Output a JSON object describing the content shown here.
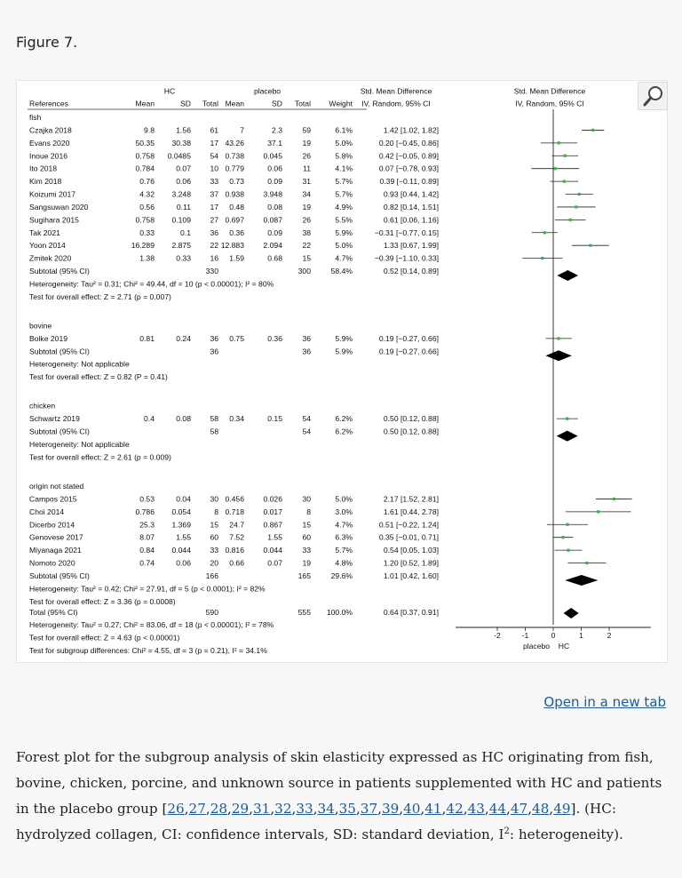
{
  "figure": {
    "title": "Figure 7.",
    "open_link": "Open in a new tab",
    "zoom_icon": "magnifier-icon"
  },
  "caption": {
    "text_before": "Forest plot for the subgroup analysis of skin elasticity expressed as HC originating from fish, bovine, chicken, porcine, and unknown source in patients supplemented with HC and patients in the placebo group [",
    "refs": [
      "26",
      "27",
      "28",
      "29",
      "31",
      "32",
      "33",
      "34",
      "35",
      "37",
      "39",
      "40",
      "41",
      "42",
      "43",
      "44",
      "47",
      "48",
      "49"
    ],
    "text_after_1": "]. (HC: hydrolyzed collagen, CI: confidence intervals, SD: standard deviation, I",
    "sup": "2",
    "text_after_2": ": heterogeneity)."
  },
  "chart_data": {
    "type": "table",
    "header": {
      "group_hc": "HC",
      "group_placebo": "placebo",
      "smd_title": "Std. Mean Difference",
      "smd_sub": "IV, Random, 95% CI",
      "plot_title": "Std. Mean Difference",
      "plot_sub": "IV, Random, 95% CI",
      "columns": [
        "References",
        "Mean",
        "SD",
        "Total",
        "Mean",
        "SD",
        "Total",
        "Weight"
      ]
    },
    "axis": {
      "ticks": [
        "-2",
        "-1",
        "0",
        "1",
        "2"
      ],
      "tick_values": [
        -2,
        -1,
        0,
        1,
        2
      ],
      "range": [
        -3.4,
        3.4
      ],
      "left_label": "placebo",
      "right_label": "HC"
    },
    "groups": [
      {
        "name": "fish",
        "studies": [
          {
            "ref": "Czajka 2018",
            "hc_mean": "9.8",
            "hc_sd": "1.56",
            "hc_n": "61",
            "pl_mean": "7",
            "pl_sd": "2.3",
            "pl_n": "59",
            "weight": "6.1%",
            "ci": "1.42 [1.02, 1.82]",
            "est": 1.42,
            "lo": 1.02,
            "hi": 1.82
          },
          {
            "ref": "Evans 2020",
            "hc_mean": "50.35",
            "hc_sd": "30.38",
            "hc_n": "17",
            "pl_mean": "43.26",
            "pl_sd": "37.1",
            "pl_n": "19",
            "weight": "5.0%",
            "ci": "0.20 [−0.45, 0.86]",
            "est": 0.2,
            "lo": -0.45,
            "hi": 0.86
          },
          {
            "ref": "Inoue 2016",
            "hc_mean": "0.758",
            "hc_sd": "0.0485",
            "hc_n": "54",
            "pl_mean": "0.738",
            "pl_sd": "0.045",
            "pl_n": "26",
            "weight": "5.8%",
            "ci": "0.42 [−0.05, 0.89]",
            "est": 0.42,
            "lo": -0.05,
            "hi": 0.89
          },
          {
            "ref": "Ito 2018",
            "hc_mean": "0.784",
            "hc_sd": "0.07",
            "hc_n": "10",
            "pl_mean": "0.779",
            "pl_sd": "0.06",
            "pl_n": "11",
            "weight": "4.1%",
            "ci": "0.07 [−0.78, 0.93]",
            "est": 0.07,
            "lo": -0.78,
            "hi": 0.93
          },
          {
            "ref": "Kim 2018",
            "hc_mean": "0.76",
            "hc_sd": "0.06",
            "hc_n": "33",
            "pl_mean": "0.73",
            "pl_sd": "0.09",
            "pl_n": "31",
            "weight": "5.7%",
            "ci": "0.39 [−0.11, 0.89]",
            "est": 0.39,
            "lo": -0.11,
            "hi": 0.89
          },
          {
            "ref": "Koizumi 2017",
            "hc_mean": "4.32",
            "hc_sd": "3.248",
            "hc_n": "37",
            "pl_mean": "0.938",
            "pl_sd": "3.948",
            "pl_n": "34",
            "weight": "5.7%",
            "ci": "0.93 [0.44, 1.42]",
            "est": 0.93,
            "lo": 0.44,
            "hi": 1.42
          },
          {
            "ref": "Sangsuwan 2020",
            "hc_mean": "0.56",
            "hc_sd": "0.11",
            "hc_n": "17",
            "pl_mean": "0.48",
            "pl_sd": "0.08",
            "pl_n": "19",
            "weight": "4.9%",
            "ci": "0.82 [0.14, 1.51]",
            "est": 0.82,
            "lo": 0.14,
            "hi": 1.51
          },
          {
            "ref": "Sugihara 2015",
            "hc_mean": "0.758",
            "hc_sd": "0.109",
            "hc_n": "27",
            "pl_mean": "0.697",
            "pl_sd": "0.087",
            "pl_n": "26",
            "weight": "5.5%",
            "ci": "0.61 [0.06, 1.16]",
            "est": 0.61,
            "lo": 0.06,
            "hi": 1.16
          },
          {
            "ref": "Tak 2021",
            "hc_mean": "0.33",
            "hc_sd": "0.1",
            "hc_n": "36",
            "pl_mean": "0.36",
            "pl_sd": "0.09",
            "pl_n": "38",
            "weight": "5.9%",
            "ci": "−0.31 [−0.77, 0.15]",
            "est": -0.31,
            "lo": -0.77,
            "hi": 0.15
          },
          {
            "ref": "Yoon 2014",
            "hc_mean": "16.289",
            "hc_sd": "2.875",
            "hc_n": "22",
            "pl_mean": "12.883",
            "pl_sd": "2.094",
            "pl_n": "22",
            "weight": "5.0%",
            "ci": "1.33 [0.67, 1.99]",
            "est": 1.33,
            "lo": 0.67,
            "hi": 1.99
          },
          {
            "ref": "Zmitek 2020",
            "hc_mean": "1.38",
            "hc_sd": "0.33",
            "hc_n": "16",
            "pl_mean": "1.59",
            "pl_sd": "0.68",
            "pl_n": "15",
            "weight": "4.7%",
            "ci": "−0.39 [−1.10, 0.33]",
            "est": -0.39,
            "lo": -1.1,
            "hi": 0.33
          }
        ],
        "subtotal": {
          "label": "Subtotal (95% CI)",
          "hc_n": "330",
          "pl_n": "300",
          "weight": "58.4%",
          "ci": "0.52 [0.14, 0.89]",
          "est": 0.52,
          "lo": 0.14,
          "hi": 0.89
        },
        "heterogeneity": "Heterogeneity: Tau² = 0.31; Chi² = 49.44, df = 10 (p < 0.00001); I² = 80%",
        "overall": "Test for overall effect: Z = 2.71 (p = 0.007)"
      },
      {
        "name": "bovine",
        "studies": [
          {
            "ref": "Bolke 2019",
            "hc_mean": "0.81",
            "hc_sd": "0.24",
            "hc_n": "36",
            "pl_mean": "0.75",
            "pl_sd": "0.36",
            "pl_n": "36",
            "weight": "5.9%",
            "ci": "0.19 [−0.27, 0.66]",
            "est": 0.19,
            "lo": -0.27,
            "hi": 0.66
          }
        ],
        "subtotal": {
          "label": "Subtotal (95% CI)",
          "hc_n": "36",
          "pl_n": "36",
          "weight": "5.9%",
          "ci": "0.19 [−0.27, 0.66]",
          "est": 0.19,
          "lo": -0.27,
          "hi": 0.66
        },
        "heterogeneity": "Heterogeneity: Not applicable",
        "overall": "Test for overall effect: Z = 0.82 (P = 0.41)"
      },
      {
        "name": "chicken",
        "studies": [
          {
            "ref": "Schwartz 2019",
            "hc_mean": "0.4",
            "hc_sd": "0.08",
            "hc_n": "58",
            "pl_mean": "0.34",
            "pl_sd": "0.15",
            "pl_n": "54",
            "weight": "6.2%",
            "ci": "0.50 [0.12, 0.88]",
            "est": 0.5,
            "lo": 0.12,
            "hi": 0.88
          }
        ],
        "subtotal": {
          "label": "Subtotal (95% CI)",
          "hc_n": "58",
          "pl_n": "54",
          "weight": "6.2%",
          "ci": "0.50 [0.12, 0.88]",
          "est": 0.5,
          "lo": 0.12,
          "hi": 0.88
        },
        "heterogeneity": "Heterogeneity: Not applicable",
        "overall": "Test for overall effect: Z = 2.61 (p = 0.009)"
      },
      {
        "name": "origin not stated",
        "studies": [
          {
            "ref": "Campos 2015",
            "hc_mean": "0.53",
            "hc_sd": "0.04",
            "hc_n": "30",
            "pl_mean": "0.456",
            "pl_sd": "0.026",
            "pl_n": "30",
            "weight": "5.0%",
            "ci": "2.17 [1.52, 2.81]",
            "est": 2.17,
            "lo": 1.52,
            "hi": 2.81
          },
          {
            "ref": "Choi 2014",
            "hc_mean": "0.786",
            "hc_sd": "0.054",
            "hc_n": "8",
            "pl_mean": "0.718",
            "pl_sd": "0.017",
            "pl_n": "8",
            "weight": "3.0%",
            "ci": "1.61 [0.44, 2.78]",
            "est": 1.61,
            "lo": 0.44,
            "hi": 2.78
          },
          {
            "ref": "Dicerbo 2014",
            "hc_mean": "25.3",
            "hc_sd": "1.369",
            "hc_n": "15",
            "pl_mean": "24.7",
            "pl_sd": "0.867",
            "pl_n": "15",
            "weight": "4.7%",
            "ci": "0.51 [−0.22, 1.24]",
            "est": 0.51,
            "lo": -0.22,
            "hi": 1.24
          },
          {
            "ref": "Genovese 2017",
            "hc_mean": "8.07",
            "hc_sd": "1.55",
            "hc_n": "60",
            "pl_mean": "7.52",
            "pl_sd": "1.55",
            "pl_n": "60",
            "weight": "6.3%",
            "ci": "0.35 [−0.01, 0.71]",
            "est": 0.35,
            "lo": -0.01,
            "hi": 0.71
          },
          {
            "ref": "Miyanaga 2021",
            "hc_mean": "0.84",
            "hc_sd": "0.044",
            "hc_n": "33",
            "pl_mean": "0.816",
            "pl_sd": "0.044",
            "pl_n": "33",
            "weight": "5.7%",
            "ci": "0.54 [0.05, 1.03]",
            "est": 0.54,
            "lo": 0.05,
            "hi": 1.03
          },
          {
            "ref": "Nomoto 2020",
            "hc_mean": "0.74",
            "hc_sd": "0.06",
            "hc_n": "20",
            "pl_mean": "0.66",
            "pl_sd": "0.07",
            "pl_n": "19",
            "weight": "4.8%",
            "ci": "1.20 [0.52, 1.89]",
            "est": 1.2,
            "lo": 0.52,
            "hi": 1.89
          }
        ],
        "subtotal": {
          "label": "Subtotal (95% CI)",
          "hc_n": "166",
          "pl_n": "165",
          "weight": "29.6%",
          "ci": "1.01 [0.42, 1.60]",
          "est": 1.01,
          "lo": 0.42,
          "hi": 1.6
        },
        "heterogeneity": "Heterogeneity: Tau² = 0.42; Chi² = 27.91, df = 5 (p < 0.0001); I² = 82%",
        "overall": "Test for overall effect: Z = 3.36 (p = 0.0008)"
      }
    ],
    "total": {
      "label": "Total (95% CI)",
      "hc_n": "590",
      "pl_n": "555",
      "weight": "100.0%",
      "ci": "0.64 [0.37, 0.91]",
      "est": 0.64,
      "lo": 0.37,
      "hi": 0.91,
      "heterogeneity": "Heterogeneity: Tau² = 0.27; Chi² = 83.06, df = 18 (p < 0.00001); I² = 78%",
      "overall": "Test for overall effect: Z = 4.63 (p < 0.00001)",
      "subgroup": "Test for subgroup differences: Chi² = 4.55, df = 3 (p = 0.21), I² = 34.1%"
    },
    "colors": {
      "marker": "#3cb043",
      "line": "#222222",
      "diamond": "#000000"
    }
  }
}
